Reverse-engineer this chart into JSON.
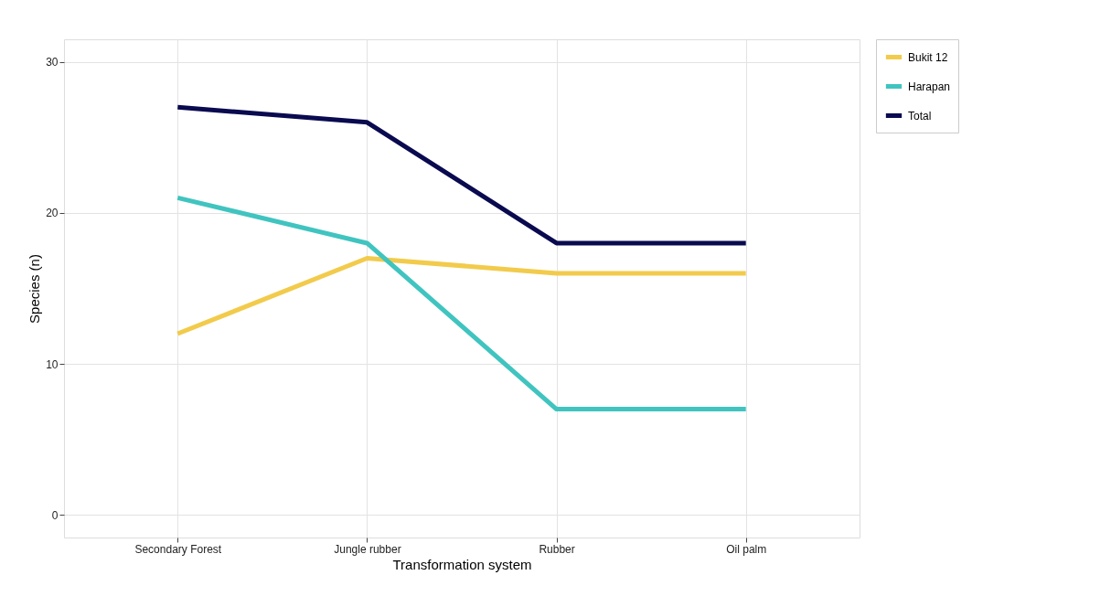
{
  "chart_data": {
    "type": "line",
    "xlabel": "Transformation system",
    "ylabel": "Species (n)",
    "categories": [
      "Secondary Forest",
      "Jungle rubber",
      "Rubber",
      "Oil palm"
    ],
    "series": [
      {
        "name": "Bukit 12",
        "color": "#f2cb4c",
        "values": [
          12,
          17,
          16,
          16
        ]
      },
      {
        "name": "Harapan",
        "color": "#40c4c0",
        "values": [
          21,
          18,
          7,
          7
        ]
      },
      {
        "name": "Total",
        "color": "#0a0a50",
        "values": [
          27,
          26,
          18,
          18
        ]
      }
    ],
    "ylim": [
      -1.5,
      31.5
    ],
    "yticks": [
      0,
      10,
      20,
      30
    ],
    "grid": true,
    "legend": "right",
    "marker": "none",
    "line_style": "solid"
  }
}
